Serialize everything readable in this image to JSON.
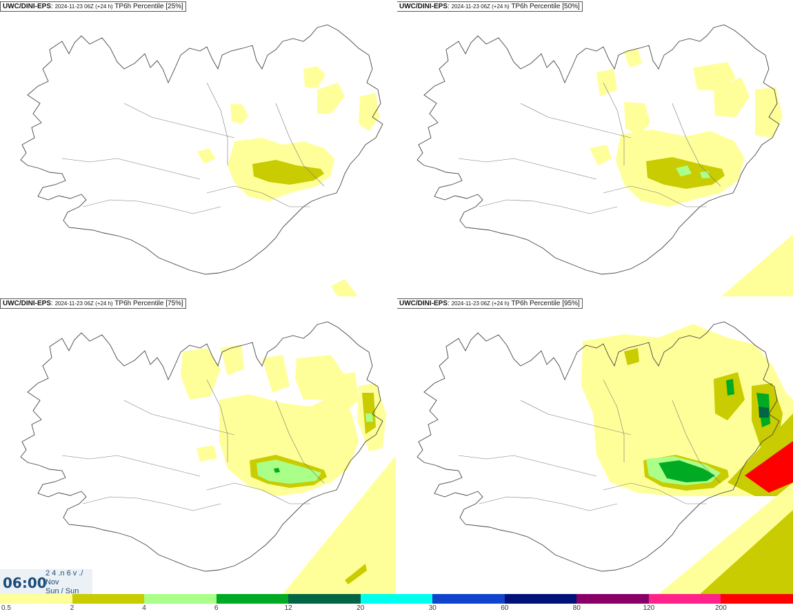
{
  "panels": [
    {
      "model": "UWC/DINI-EPS",
      "date": "2024-11-23 06Z (+24 h)",
      "label": "TP6h Percentile [25%]",
      "percentile": 25
    },
    {
      "model": "UWC/DINI-EPS",
      "date": "2024-11-23 06Z (+24 h)",
      "label": "TP6h Percentile [50%]",
      "percentile": 50
    },
    {
      "model": "UWC/DINI-EPS",
      "date": "2024-11-23 06Z (+24 h)",
      "label": "TP6h Percentile [75%]",
      "percentile": 75
    },
    {
      "model": "UWC/DINI-EPS",
      "date": "2024-11-23 06Z (+24 h)",
      "label": "TP6h Percentile [95%]",
      "percentile": 95
    }
  ],
  "time": {
    "main": "06:00",
    "line1": "2 4 .n 6 v ./",
    "line2": "Nov",
    "line3": "Sun / Sun"
  },
  "colorbar": {
    "colors": [
      "#ffff99",
      "#c8cc00",
      "#aaff88",
      "#00aa22",
      "#006644",
      "#00ffee",
      "#1144cc",
      "#001177",
      "#880066",
      "#ff2288",
      "#ff0000"
    ],
    "labels": [
      "0.5",
      "2",
      "4",
      "6",
      "12",
      "20",
      "30",
      "60",
      "80",
      "120",
      "200"
    ]
  },
  "level_colors": {
    "l1": "#ffff99",
    "l2": "#c8cc00",
    "l3": "#aaff88",
    "l4": "#00aa22",
    "l5": "#006644"
  }
}
